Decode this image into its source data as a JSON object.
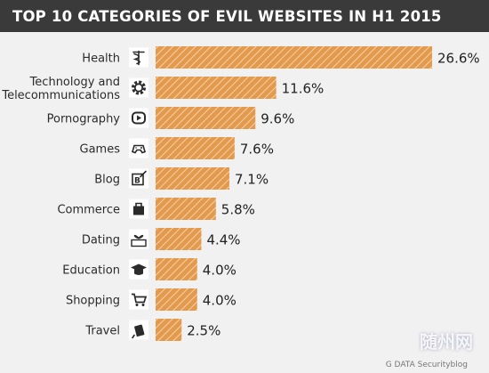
{
  "colors": {
    "background": "#f1f1f1",
    "title_bar": "#3a3a3a",
    "bar_fill": "#e49a4c",
    "bar_stripe": "#ffffff",
    "icon_tile": "#ffffff",
    "icon_fg": "#2b2b2b"
  },
  "chart_data": {
    "type": "bar",
    "orientation": "horizontal",
    "title": "TOP 10 CATEGORIES OF EVIL WEBSITES IN H1 2015",
    "categories": [
      "Health",
      "Technology and\nTelecommunications",
      "Pornography",
      "Games",
      "Blog",
      "Commerce",
      "Dating",
      "Education",
      "Shopping",
      "Travel"
    ],
    "values": [
      26.6,
      11.6,
      9.6,
      7.6,
      7.1,
      5.8,
      4.4,
      4.0,
      4.0,
      2.5
    ],
    "value_labels": [
      "26.6%",
      "11.6%",
      "9.6%",
      "7.6%",
      "7.1%",
      "5.8%",
      "4.4%",
      "4.0%",
      "4.0%",
      "2.5%"
    ],
    "icons": [
      "caduceus-icon",
      "gear-icon",
      "play-icon",
      "gamepad-icon",
      "blog-icon",
      "shopping-bag-icon",
      "heart-keyboard-icon",
      "graduation-cap-icon",
      "shopping-cart-icon",
      "luggage-icon"
    ],
    "xlim": [
      0,
      26.6
    ],
    "grid": false,
    "legend": "none"
  },
  "credit": "G DATA Securityblog",
  "watermark": "随州网"
}
